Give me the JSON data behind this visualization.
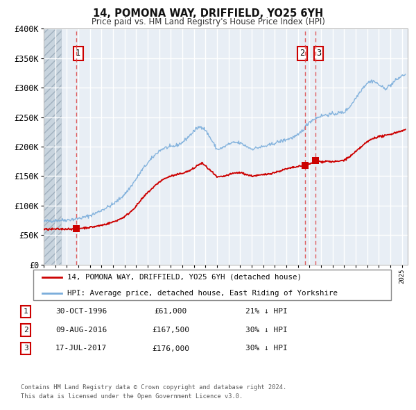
{
  "title": "14, POMONA WAY, DRIFFIELD, YO25 6YH",
  "subtitle": "Price paid vs. HM Land Registry's House Price Index (HPI)",
  "red_label": "14, POMONA WAY, DRIFFIELD, YO25 6YH (detached house)",
  "blue_label": "HPI: Average price, detached house, East Riding of Yorkshire",
  "transactions": [
    {
      "num": 1,
      "date": "30-OCT-1996",
      "price": 61000,
      "price_str": "£61,000",
      "pct": "21%",
      "year": 1996.83
    },
    {
      "num": 2,
      "date": "09-AUG-2016",
      "price": 167500,
      "price_str": "£167,500",
      "pct": "30%",
      "year": 2016.61
    },
    {
      "num": 3,
      "date": "17-JUL-2017",
      "price": 176000,
      "price_str": "£176,000",
      "pct": "30%",
      "year": 2017.54
    }
  ],
  "footer1": "Contains HM Land Registry data © Crown copyright and database right 2024.",
  "footer2": "This data is licensed under the Open Government Licence v3.0.",
  "ylim": [
    0,
    400000
  ],
  "xlim_start": 1994.0,
  "xlim_end": 2025.5,
  "hatch_end": 1995.5,
  "red_color": "#cc0000",
  "blue_color": "#7aaddb",
  "vline_color": "#dd4444",
  "plot_bg": "#e8eef5",
  "grid_color": "#ffffff",
  "hatch_color": "#c8d4de",
  "marker_color": "#cc0000"
}
